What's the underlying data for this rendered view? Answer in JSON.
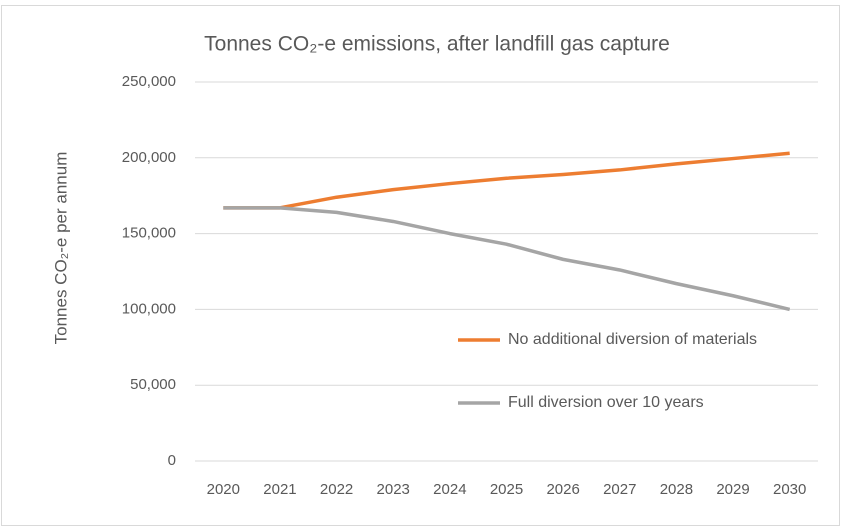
{
  "chart_data": {
    "type": "line",
    "title": "Tonnes CO₂-e emissions, after landfill gas capture",
    "y_label": "Tonnes CO₂-e per annum",
    "categories": [
      "2020",
      "2021",
      "2022",
      "2023",
      "2024",
      "2025",
      "2026",
      "2027",
      "2028",
      "2029",
      "2030"
    ],
    "series": [
      {
        "name": "No additional diversion of materials",
        "color": "#ed7d31",
        "values": [
          167000,
          167000,
          174000,
          179000,
          183000,
          186500,
          189000,
          192000,
          196000,
          199500,
          203000
        ]
      },
      {
        "name": "Full diversion over 10 years",
        "color": "#a5a5a5",
        "values": [
          167000,
          167000,
          164000,
          158000,
          150000,
          143000,
          133000,
          126000,
          117000,
          109000,
          100000
        ]
      }
    ],
    "ylim": [
      0,
      250000
    ],
    "yticks": [
      {
        "value": 0,
        "label": "0"
      },
      {
        "value": 50000,
        "label": "50,000"
      },
      {
        "value": 100000,
        "label": "100,000"
      },
      {
        "value": 150000,
        "label": "150,000"
      },
      {
        "value": 200000,
        "label": "200,000"
      },
      {
        "value": 250000,
        "label": "250,000"
      }
    ],
    "grid": true
  }
}
